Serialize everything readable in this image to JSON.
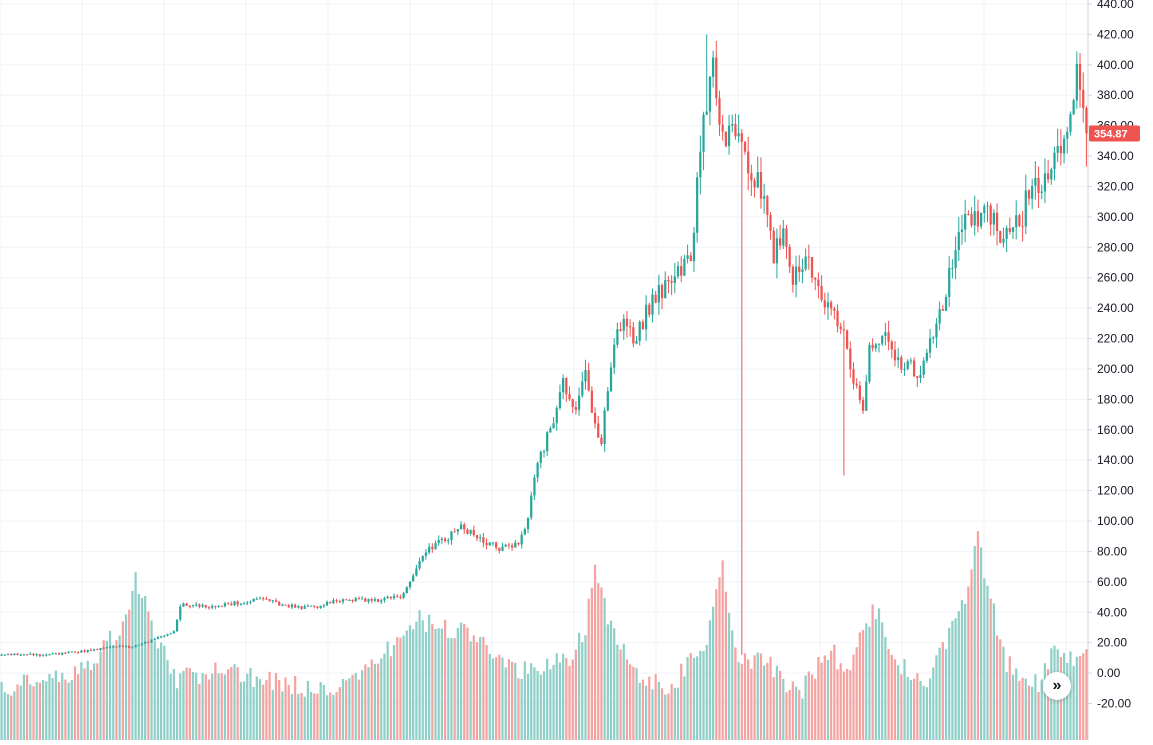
{
  "chart_data": {
    "type": "candlestick",
    "title": "",
    "xlabel": "",
    "ylabel": "",
    "ylim": [
      -25,
      442
    ],
    "y_ticks": [
      "440.00",
      "420.00",
      "400.00",
      "380.00",
      "360.00",
      "340.00",
      "320.00",
      "300.00",
      "280.00",
      "260.00",
      "240.00",
      "220.00",
      "200.00",
      "180.00",
      "160.00",
      "140.00",
      "120.00",
      "100.00",
      "80.00",
      "60.00",
      "40.00",
      "20.00",
      "0.00",
      "-20.00"
    ],
    "last_price": "354.87",
    "colors": {
      "up": "#26a69a",
      "down": "#ef5350",
      "up_volume": "#8fcfc8",
      "down_volume": "#f4a3a1",
      "grid": "#f0f3fa",
      "axis": "#d1d4dc",
      "text": "#131722"
    },
    "keypoints": [
      [
        0,
        12
      ],
      [
        15,
        12
      ],
      [
        28,
        15
      ],
      [
        36,
        18
      ],
      [
        40,
        17
      ],
      [
        46,
        21
      ],
      [
        50,
        24
      ],
      [
        54,
        27
      ],
      [
        56,
        45
      ],
      [
        60,
        44
      ],
      [
        68,
        44
      ],
      [
        73,
        46
      ],
      [
        78,
        48
      ],
      [
        83,
        48
      ],
      [
        88,
        45
      ],
      [
        92,
        44
      ],
      [
        95,
        43
      ],
      [
        100,
        44
      ],
      [
        105,
        48
      ],
      [
        110,
        48
      ],
      [
        118,
        48
      ],
      [
        125,
        50
      ],
      [
        128,
        60
      ],
      [
        132,
        77
      ],
      [
        136,
        85
      ],
      [
        140,
        90
      ],
      [
        144,
        95
      ],
      [
        148,
        92
      ],
      [
        152,
        85
      ],
      [
        157,
        82
      ],
      [
        162,
        85
      ],
      [
        164,
        92
      ],
      [
        167,
        130
      ],
      [
        172,
        160
      ],
      [
        176,
        195
      ],
      [
        179,
        170
      ],
      [
        183,
        200
      ],
      [
        186,
        163
      ],
      [
        188,
        155
      ],
      [
        191,
        200
      ],
      [
        194,
        230
      ],
      [
        198,
        218
      ],
      [
        203,
        240
      ],
      [
        208,
        255
      ],
      [
        212,
        260
      ],
      [
        216,
        275
      ],
      [
        218,
        320
      ],
      [
        220,
        360
      ],
      [
        222,
        385
      ],
      [
        223,
        395
      ],
      [
        225,
        355
      ],
      [
        227,
        345
      ],
      [
        230,
        360
      ],
      [
        232,
        345
      ],
      [
        234,
        330
      ],
      [
        237,
        320
      ],
      [
        240,
        300
      ],
      [
        242,
        272
      ],
      [
        245,
        290
      ],
      [
        248,
        262
      ],
      [
        252,
        275
      ],
      [
        256,
        260
      ],
      [
        258,
        240
      ],
      [
        261,
        235
      ],
      [
        264,
        220
      ],
      [
        266,
        195
      ],
      [
        269,
        180
      ],
      [
        270,
        175
      ],
      [
        272,
        215
      ],
      [
        275,
        220
      ],
      [
        278,
        218
      ],
      [
        281,
        205
      ],
      [
        284,
        205
      ],
      [
        287,
        192
      ],
      [
        291,
        215
      ],
      [
        295,
        240
      ],
      [
        300,
        292
      ],
      [
        303,
        300
      ],
      [
        306,
        295
      ],
      [
        309,
        305
      ],
      [
        312,
        290
      ],
      [
        315,
        290
      ],
      [
        319,
        295
      ],
      [
        322,
        315
      ],
      [
        324,
        320
      ],
      [
        328,
        330
      ],
      [
        332,
        345
      ],
      [
        335,
        375
      ],
      [
        337,
        390
      ],
      [
        340,
        355
      ]
    ],
    "volume_keypoints": [
      [
        0,
        -10
      ],
      [
        20,
        -5
      ],
      [
        30,
        10
      ],
      [
        40,
        35
      ],
      [
        42,
        60
      ],
      [
        50,
        15
      ],
      [
        55,
        -5
      ],
      [
        70,
        0
      ],
      [
        90,
        -8
      ],
      [
        100,
        -12
      ],
      [
        110,
        -5
      ],
      [
        120,
        10
      ],
      [
        130,
        35
      ],
      [
        136,
        30
      ],
      [
        145,
        25
      ],
      [
        150,
        18
      ],
      [
        160,
        0
      ],
      [
        170,
        5
      ],
      [
        178,
        5
      ],
      [
        183,
        30
      ],
      [
        186,
        75
      ],
      [
        190,
        30
      ],
      [
        200,
        -5
      ],
      [
        210,
        -10
      ],
      [
        215,
        5
      ],
      [
        220,
        10
      ],
      [
        222,
        30
      ],
      [
        226,
        75
      ],
      [
        230,
        10
      ],
      [
        240,
        5
      ],
      [
        250,
        -15
      ],
      [
        260,
        15
      ],
      [
        265,
        -5
      ],
      [
        270,
        25
      ],
      [
        275,
        45
      ],
      [
        280,
        5
      ],
      [
        285,
        0
      ],
      [
        290,
        -5
      ],
      [
        298,
        30
      ],
      [
        303,
        55
      ],
      [
        306,
        90
      ],
      [
        309,
        55
      ],
      [
        315,
        5
      ],
      [
        325,
        -10
      ],
      [
        330,
        15
      ],
      [
        338,
        5
      ],
      [
        340,
        12
      ]
    ]
  },
  "ui": {
    "scroll_button_icon": "double-chevron-right-icon",
    "scroll_button_glyph": "»"
  }
}
